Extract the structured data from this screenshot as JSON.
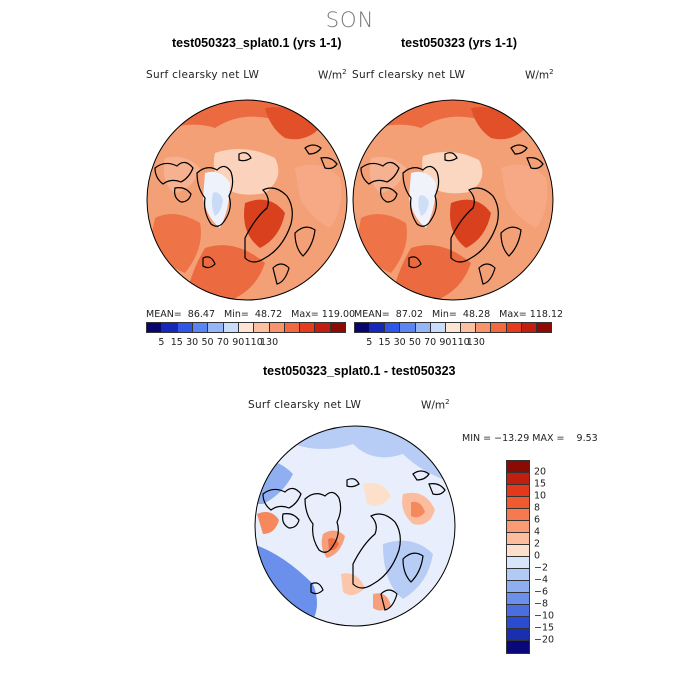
{
  "title": "SON",
  "panels": [
    {
      "title": "test050323_splat0.1 (yrs 1-1)",
      "variable": "Surf clearsky net LW",
      "units": "W/m",
      "units_exp": "2",
      "stats": "MEAN=  86.47   Min=  48.72   Max= 119.00"
    },
    {
      "title": "test050323 (yrs 1-1)",
      "variable": "Surf clearsky net LW",
      "units": "W/m",
      "units_exp": "2",
      "stats": "MEAN=  87.02   Min=  48.28   Max= 118.12"
    }
  ],
  "abs_colorbar": {
    "ticks": [
      "5",
      "15",
      "30",
      "50",
      "70",
      "90",
      "110",
      "130"
    ],
    "colors": [
      "#08066e",
      "#1528b8",
      "#2f56e6",
      "#5b86f2",
      "#96b5f6",
      "#cbdcf8",
      "#fde5d3",
      "#fbc0a0",
      "#f7946c",
      "#f2683f",
      "#e63c1e",
      "#c21e0f",
      "#8e0a04"
    ]
  },
  "diff_panel": {
    "title": "test050323_splat0.1 - test050323",
    "variable": "Surf clearsky net LW",
    "units": "W/m",
    "units_exp": "2",
    "stats": "MIN = −13.29 MAX =    9.53"
  },
  "diff_colorbar": {
    "labels": [
      "20",
      "15",
      "10",
      "8",
      "6",
      "4",
      "2",
      "0",
      "−2",
      "−4",
      "−6",
      "−8",
      "−10",
      "−15",
      "−20"
    ],
    "colors": [
      "#8b0a04",
      "#c01e0e",
      "#e3381b",
      "#f05a31",
      "#f57a4f",
      "#f99c75",
      "#fbbd9e",
      "#fde0cc",
      "#d8e6fb",
      "#b2cbf5",
      "#8daef0",
      "#6b90eb",
      "#4a6ee0",
      "#2b4bd0",
      "#1a2fb0",
      "#08087a"
    ]
  }
}
